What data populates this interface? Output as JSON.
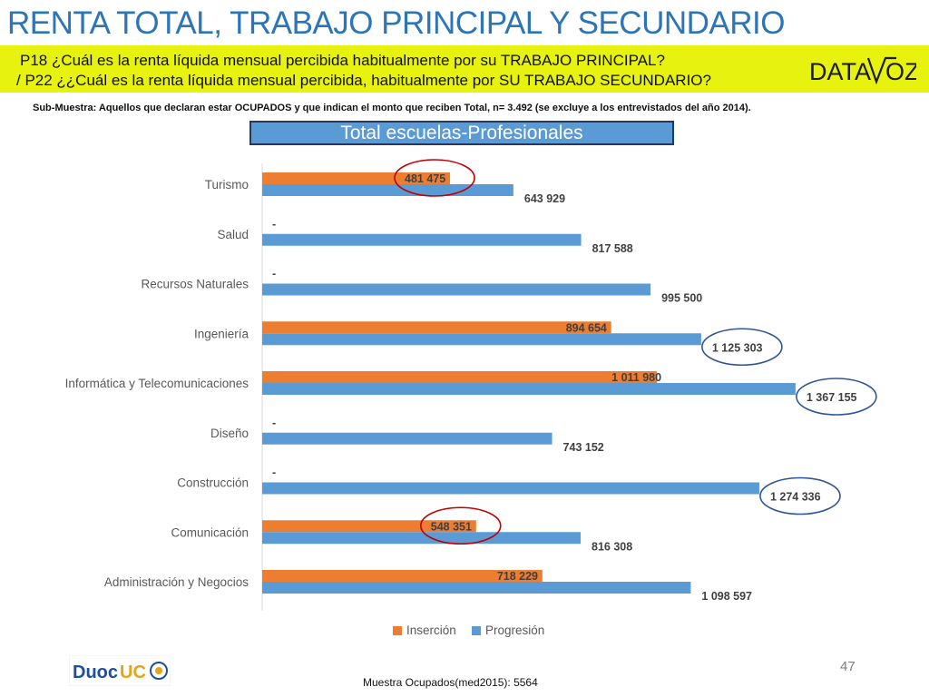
{
  "slide": {
    "title": "RENTA TOTAL, TRABAJO PRINCIPAL Y SECUNDARIO",
    "question1": "P18 ¿Cuál es la renta líquida mensual percibida habitualmente por su TRABAJO PRINCIPAL?",
    "question2": "/ P22 ¿¿Cuál es la  renta líquida mensual percibida, habitualmente por  SU TRABAJO SECUNDARIO?",
    "subsample": "Sub-Muestra: Aquellos que declaran estar OCUPADOS y que indican el monto que reciben Total, n= 3.492 (se excluye a los entrevistados del año 2014).",
    "box_title": "Total escuelas-Profesionales",
    "page_number": "47",
    "footer": "Muestra Ocupados(med2015): 5564"
  },
  "logos": {
    "datavoz_left": "DATA",
    "datavoz_right": "OZ",
    "duoc_left": "Duoc",
    "duoc_right": "UC"
  },
  "chart_data": {
    "type": "bar",
    "orientation": "horizontal",
    "categories": [
      "Turismo",
      "Salud",
      "Recursos Naturales",
      "Ingeniería",
      "Informática y Telecomunicaciones",
      "Diseño",
      "Construcción",
      "Comunicación",
      "Administración y Negocios"
    ],
    "series": [
      {
        "name": "Inserción",
        "color": "#ED7D31",
        "values": [
          481475,
          null,
          null,
          894654,
          1011980,
          null,
          null,
          548351,
          718229
        ],
        "labels": [
          "481 475",
          "-",
          "-",
          "894 654",
          "1 011 980",
          "-",
          "-",
          "548 351",
          "718 229"
        ]
      },
      {
        "name": "Progresión",
        "color": "#5B9BD5",
        "values": [
          643929,
          817588,
          995500,
          1125303,
          1367155,
          743152,
          1274336,
          816308,
          1098597
        ],
        "labels": [
          "643 929",
          "817 588",
          "995 500",
          "1 125 303",
          "1 367 155",
          "743 152",
          "1 274 336",
          "816 308",
          "1 098 597"
        ]
      }
    ],
    "xlim": [
      0,
      1400000
    ],
    "legend_position": "bottom",
    "highlight_circles": [
      {
        "series": "Inserción",
        "category": "Turismo",
        "color": "#C00000"
      },
      {
        "series": "Inserción",
        "category": "Comunicación",
        "color": "#C00000"
      },
      {
        "series": "Progresión",
        "category": "Ingeniería",
        "color": "#2F5597"
      },
      {
        "series": "Progresión",
        "category": "Informática y Telecomunicaciones",
        "color": "#2F5597"
      },
      {
        "series": "Progresión",
        "category": "Construcción",
        "color": "#2F5597"
      }
    ]
  }
}
